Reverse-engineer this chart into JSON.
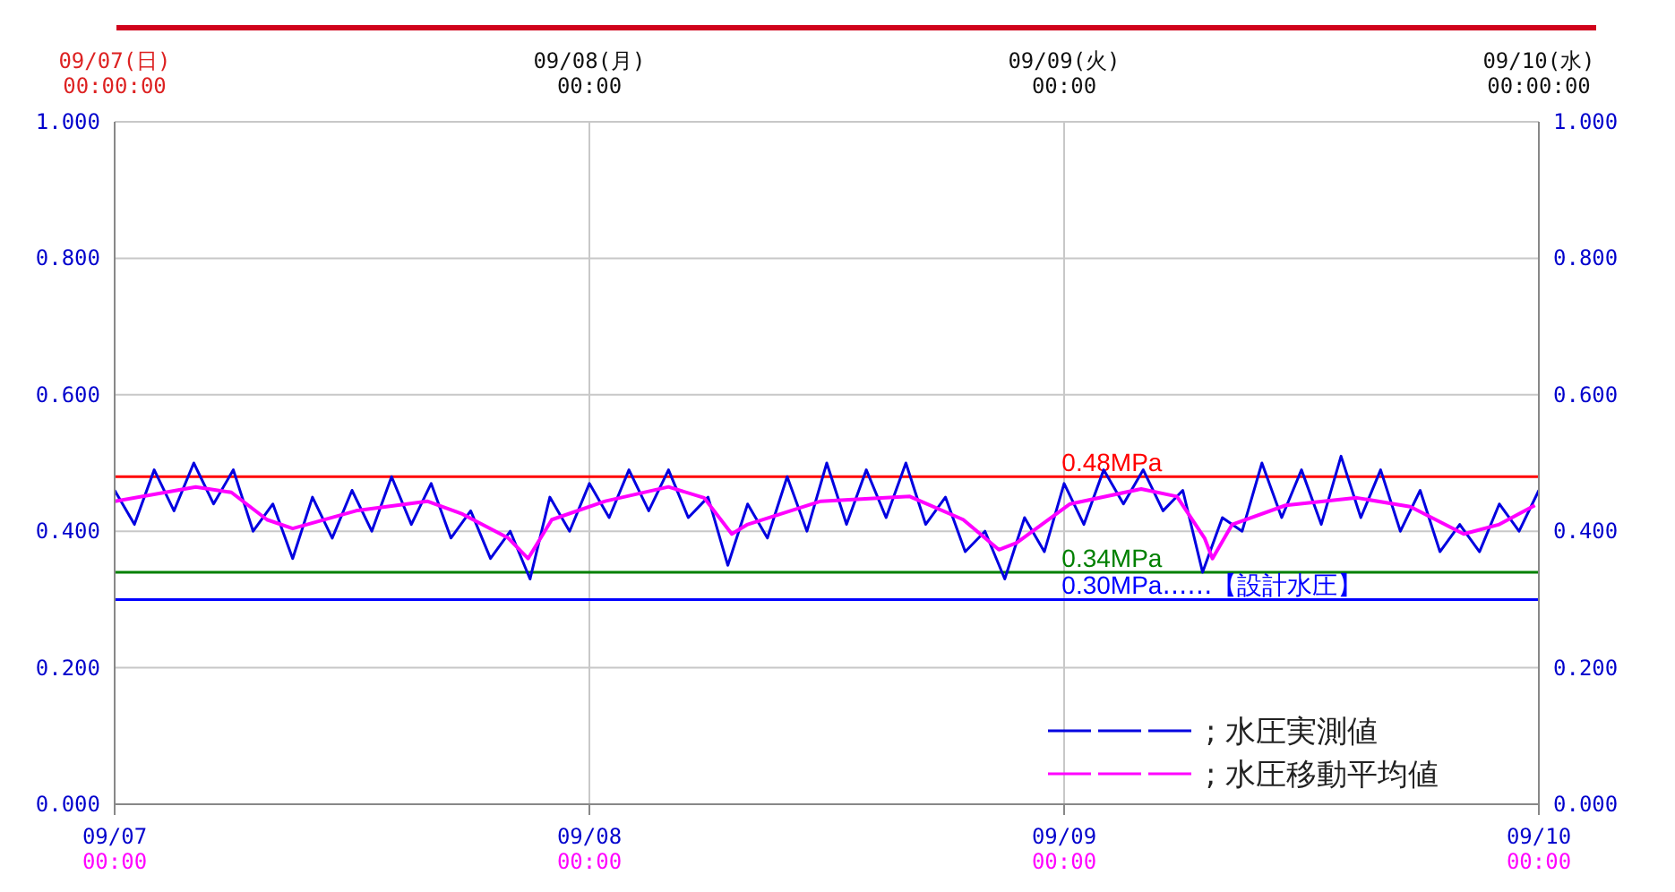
{
  "chart_data": {
    "type": "line",
    "series": [
      {
        "name": "; 水圧実測値",
        "color": "#0000e0",
        "x": [
          "--09-07T00:00",
          "--09-07T01:00",
          "--09-07T02:00",
          "--09-07T03:00",
          "--09-07T04:00",
          "--09-07T05:00",
          "--09-07T06:00",
          "--09-07T07:00",
          "--09-07T08:00",
          "--09-07T09:00",
          "--09-07T10:00",
          "--09-07T11:00",
          "--09-07T12:00",
          "--09-07T13:00",
          "--09-07T14:00",
          "--09-07T15:00",
          "--09-07T16:00",
          "--09-07T17:00",
          "--09-07T18:00",
          "--09-07T19:00",
          "--09-07T20:00",
          "--09-07T21:00",
          "--09-07T22:00",
          "--09-07T23:00",
          "--09-08T00:00",
          "--09-08T01:00",
          "--09-08T02:00",
          "--09-08T03:00",
          "--09-08T04:00",
          "--09-08T05:00",
          "--09-08T06:00",
          "--09-08T07:00",
          "--09-08T08:00",
          "--09-08T09:00",
          "--09-08T10:00",
          "--09-08T11:00",
          "--09-08T12:00",
          "--09-08T13:00",
          "--09-08T14:00",
          "--09-08T15:00",
          "--09-08T16:00",
          "--09-08T17:00",
          "--09-08T18:00",
          "--09-08T19:00",
          "--09-08T20:00",
          "--09-08T21:00",
          "--09-08T22:00",
          "--09-08T23:00",
          "--09-09T00:00",
          "--09-09T01:00",
          "--09-09T02:00",
          "--09-09T03:00",
          "--09-09T04:00",
          "--09-09T05:00",
          "--09-09T06:00",
          "--09-09T07:00",
          "--09-09T08:00",
          "--09-09T09:00",
          "--09-09T10:00",
          "--09-09T11:00",
          "--09-09T12:00",
          "--09-09T13:00",
          "--09-09T14:00",
          "--09-09T15:00",
          "--09-09T16:00",
          "--09-09T17:00",
          "--09-09T18:00",
          "--09-09T19:00",
          "--09-09T20:00",
          "--09-09T21:00",
          "--09-09T22:00",
          "--09-09T23:00",
          "--09-10T00:00"
        ],
        "values": [
          0.46,
          0.41,
          0.49,
          0.43,
          0.5,
          0.44,
          0.49,
          0.4,
          0.44,
          0.36,
          0.45,
          0.39,
          0.46,
          0.4,
          0.48,
          0.41,
          0.47,
          0.39,
          0.43,
          0.36,
          0.4,
          0.33,
          0.45,
          0.4,
          0.47,
          0.42,
          0.49,
          0.43,
          0.49,
          0.42,
          0.45,
          0.35,
          0.44,
          0.39,
          0.48,
          0.4,
          0.5,
          0.41,
          0.49,
          0.42,
          0.5,
          0.41,
          0.45,
          0.37,
          0.4,
          0.33,
          0.42,
          0.37,
          0.47,
          0.41,
          0.49,
          0.44,
          0.49,
          0.43,
          0.46,
          0.34,
          0.42,
          0.4,
          0.5,
          0.42,
          0.49,
          0.41,
          0.51,
          0.42,
          0.49,
          0.4,
          0.46,
          0.37,
          0.41,
          0.37,
          0.44,
          0.4,
          0.46
        ]
      },
      {
        "name": "; 水圧移動平均値",
        "color": "#ff00ff",
        "x": [
          "--09-07T00:00",
          "--09-07T04:06",
          "--09-07T05:54",
          "--09-07T07:42",
          "--09-07T09:00",
          "--09-07T12:12",
          "--09-07T15:48",
          "--09-07T17:36",
          "--09-07T19:54",
          "--09-07T20:54",
          "--09-07T22:06",
          "--09-08T00:48",
          "--09-08T04:00",
          "--09-08T05:48",
          "--09-08T07:12",
          "--09-08T08:00",
          "--09-08T11:42",
          "--09-08T16:12",
          "--09-08T18:54",
          "--09-08T20:42",
          "--09-08T21:36",
          "--09-09T00:18",
          "--09-09T03:54",
          "--09-09T05:42",
          "--09-09T07:06",
          "--09-09T07:30",
          "--09-09T08:30",
          "--09-09T11:12",
          "--09-09T14:48",
          "--09-09T17:30",
          "--09-09T20:12",
          "--09-09T22:00",
          "--09-09T23:48"
        ],
        "values": [
          0.444,
          0.465,
          0.457,
          0.417,
          0.404,
          0.43,
          0.444,
          0.425,
          0.39,
          0.36,
          0.417,
          0.444,
          0.465,
          0.449,
          0.396,
          0.41,
          0.444,
          0.451,
          0.417,
          0.373,
          0.383,
          0.44,
          0.462,
          0.451,
          0.39,
          0.36,
          0.41,
          0.438,
          0.449,
          0.436,
          0.396,
          0.41,
          0.438
        ]
      }
    ],
    "xlim": [
      "--09-07T00:00",
      "--09-10T00:00"
    ],
    "xticks": [
      {
        "value": "--09-07T00:00",
        "label": "09/07\n00:00"
      },
      {
        "value": "--09-08T00:00",
        "label": "09/08\n00:00"
      },
      {
        "value": "--09-09T00:00",
        "label": "09/09\n00:00"
      },
      {
        "value": "--09-10T00:00",
        "label": "09/10\n00:00"
      }
    ],
    "x2lim": [
      "--09-07T00:00",
      "--09-10T00:00"
    ],
    "x2ticks": [
      {
        "value": "--09-07T00:00",
        "label": "09/07(日)\n00:00:00"
      },
      {
        "value": "--09-08T00:00",
        "label": "09/08(月)\n00:00"
      },
      {
        "value": "--09-09T00:00",
        "label": "09/09(火)\n00:00"
      },
      {
        "value": "--09-10T00:00",
        "label": "09/10(水)\n00:00:00"
      }
    ],
    "ylim": [
      0,
      1
    ],
    "yticks": [
      {
        "value": 0,
        "label": "0.000"
      },
      {
        "value": 0.2,
        "label": "0.200"
      },
      {
        "value": 0.4,
        "label": "0.400"
      },
      {
        "value": 0.6,
        "label": "0.600"
      },
      {
        "value": 0.8,
        "label": "0.800"
      },
      {
        "value": 1,
        "label": "1.000"
      }
    ],
    "y2lim": [
      0,
      1
    ],
    "y2ticks": [
      {
        "value": 0,
        "label": "0.000"
      },
      {
        "value": 0.2,
        "label": "0.200"
      },
      {
        "value": 0.4,
        "label": "0.400"
      },
      {
        "value": 0.6,
        "label": "0.600"
      },
      {
        "value": 0.8,
        "label": "0.800"
      },
      {
        "value": 1,
        "label": "1.000"
      }
    ],
    "ref_lines": [
      {
        "axis": "y",
        "value": 0.48,
        "label": "0.48MPa",
        "color": "#ff0000"
      },
      {
        "axis": "y",
        "value": 0.34,
        "label": "0.34MPa",
        "color": "#008000"
      },
      {
        "axis": "y",
        "value": 0.3,
        "label": "0.30MPa‥‥‥【設計水圧】",
        "color": "#0000ff"
      }
    ],
    "grid": true,
    "legend": "bottom right",
    "marker": "none",
    "line_style": "solid"
  }
}
